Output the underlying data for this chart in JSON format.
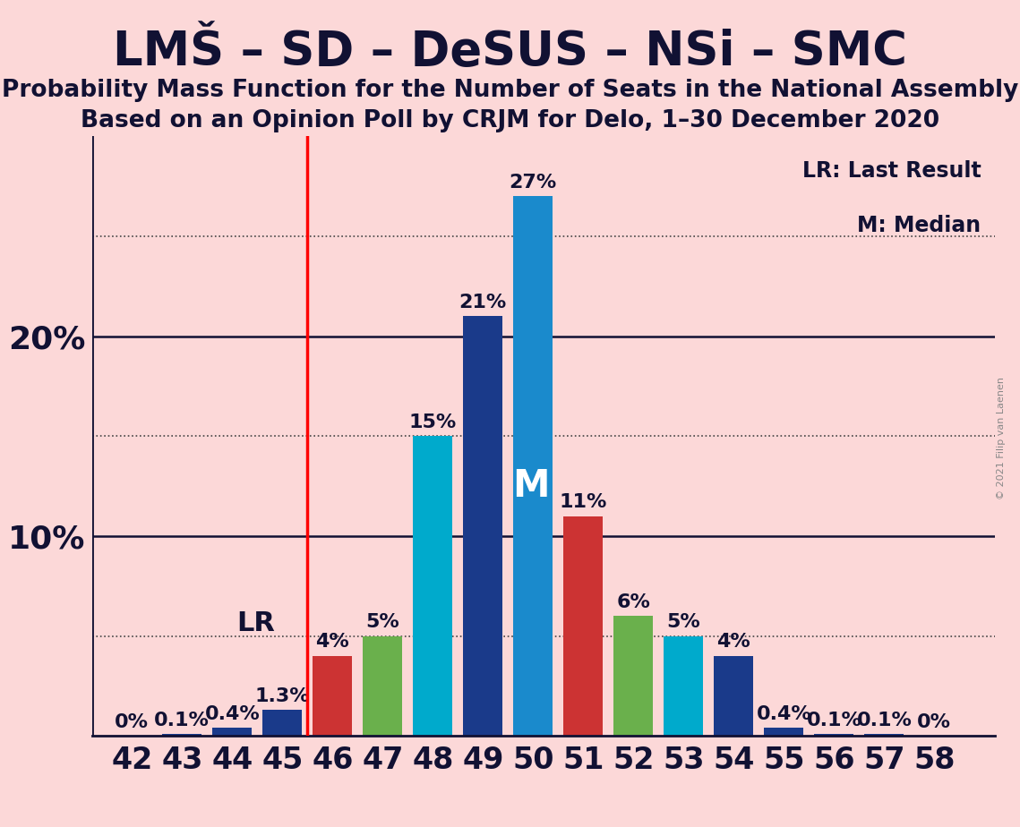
{
  "title": "LMŠ – SD – DeSUS – NSi – SMC",
  "subtitle1": "Probability Mass Function for the Number of Seats in the National Assembly",
  "subtitle2": "Based on an Opinion Poll by CRJM for Delo, 1–30 December 2020",
  "copyright": "© 2021 Filip van Laenen",
  "background_color": "#fcd8d8",
  "seats": [
    42,
    43,
    44,
    45,
    46,
    47,
    48,
    49,
    50,
    51,
    52,
    53,
    54,
    55,
    56,
    57,
    58
  ],
  "values": [
    0.0,
    0.1,
    0.4,
    1.3,
    4.0,
    5.0,
    15.0,
    21.0,
    27.0,
    11.0,
    6.0,
    5.0,
    4.0,
    0.4,
    0.1,
    0.1,
    0.0
  ],
  "bar_colors": [
    "#1a3a8a",
    "#1a3a8a",
    "#1a3a8a",
    "#1a3a8a",
    "#cc3333",
    "#6ab04c",
    "#00aacc",
    "#1a3a8a",
    "#1a8acc",
    "#cc3333",
    "#6ab04c",
    "#00aacc",
    "#1a3a8a",
    "#1a3a8a",
    "#1a3a8a",
    "#1a3a8a",
    "#1a3a8a"
  ],
  "bar_label_formats": [
    "0%",
    "0.1%",
    "0.4%",
    "1.3%",
    "4%",
    "5%",
    "15%",
    "21%",
    "27%",
    "11%",
    "6%",
    "5%",
    "4%",
    "0.4%",
    "0.1%",
    "0.1%",
    "0%"
  ],
  "lr_seat": 45,
  "median_seat": 50,
  "ylim": [
    0,
    30
  ],
  "dotted_lines": [
    5,
    15,
    25
  ],
  "solid_lines": [
    10,
    20
  ],
  "lr_label": "LR",
  "median_label": "M",
  "legend_lr": "LR: Last Result",
  "legend_m": "M: Median",
  "title_fontsize": 38,
  "subtitle_fontsize": 19,
  "bar_label_fontsize": 16,
  "axis_fontsize": 24,
  "axis_label_fontsize": 26
}
